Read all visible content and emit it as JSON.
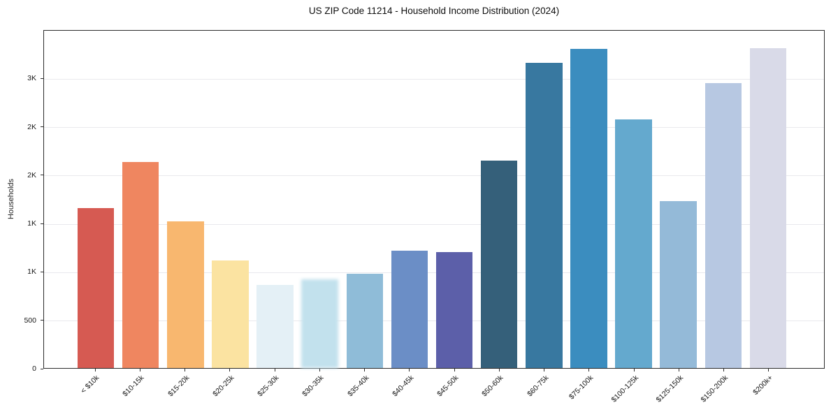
{
  "chart_data": {
    "type": "bar",
    "title": "US ZIP Code 11214 - Household Income Distribution (2024)",
    "xlabel": "",
    "ylabel": "Households",
    "categories": [
      "< $10k",
      "$10-15k",
      "$15-20k",
      "$20-25k",
      "$25-30k",
      "$30-35k",
      "$35-40k",
      "$40-45k",
      "$45-50k",
      "$50-60k",
      "$60-75k",
      "$75-100k",
      "$100-125k",
      "$125-150k",
      "$150-200k",
      "$200k+"
    ],
    "values": [
      1660,
      2140,
      1520,
      1115,
      865,
      920,
      980,
      1220,
      1205,
      2155,
      3170,
      3315,
      2580,
      1730,
      2955,
      3320
    ],
    "bar_colors": [
      "#d65a52",
      "#ef8660",
      "#f8b76f",
      "#fbe3a1",
      "#e4f0f6",
      "#c2e1ed",
      "#8fbcd8",
      "#6b8ec6",
      "#5c5fa9",
      "#35607a",
      "#3878a0",
      "#3b8dbf",
      "#64a9ce",
      "#94bad8",
      "#b7c8e2",
      "#d9dae8"
    ],
    "ylim": [
      0,
      3500
    ],
    "yticks": {
      "values": [
        0,
        500,
        1000,
        1500,
        2000,
        2500,
        3000
      ],
      "labels": [
        "0",
        "500",
        "1K",
        "1K",
        "2K",
        "2K",
        "3K"
      ]
    },
    "grid": "horizontal-only",
    "legend": "none",
    "xtick_rotation_deg": 45,
    "soft_edge_bar_index": 5,
    "gridline_color": "#e9e9ed",
    "background_color": "#ffffff"
  }
}
